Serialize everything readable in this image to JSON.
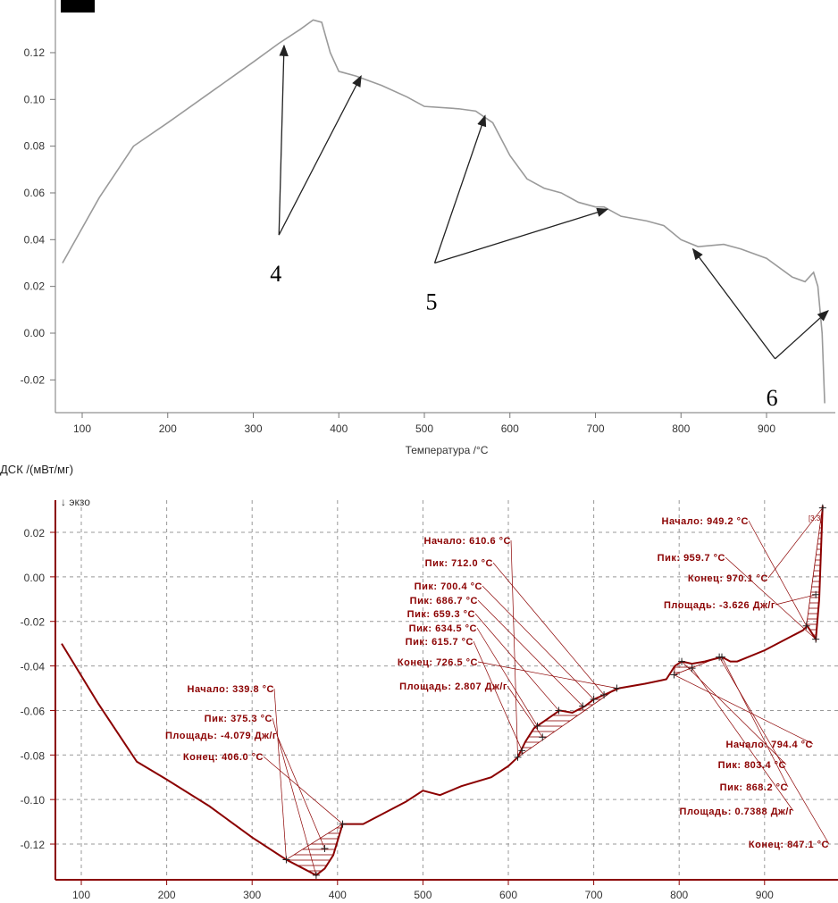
{
  "chart_data": [
    {
      "type": "line",
      "title": "",
      "xlabel": "Температура /°C",
      "ylabel": "",
      "xlim": [
        77,
        975
      ],
      "ylim": [
        -0.034,
        0.142
      ],
      "grid": false,
      "xticks": [
        100,
        200,
        300,
        400,
        500,
        600,
        700,
        800,
        900
      ],
      "yticks": [
        "0.12",
        "0.10",
        "0.08",
        "0.06",
        "0.04",
        "0.02",
        "0.00",
        "-0.02"
      ],
      "ytick_values": [
        0.12,
        0.1,
        0.08,
        0.06,
        0.04,
        0.02,
        0.0,
        -0.02
      ],
      "series": [
        {
          "name": "curve",
          "color": "#9a9a9a",
          "x": [
            77,
            120,
            160,
            200,
            250,
            300,
            330,
            355,
            370,
            380,
            390,
            400,
            420,
            450,
            480,
            500,
            540,
            560,
            580,
            600,
            620,
            640,
            660,
            680,
            700,
            710,
            730,
            760,
            780,
            800,
            820,
            850,
            870,
            900,
            930,
            945,
            955,
            960,
            965,
            968
          ],
          "y": [
            0.03,
            0.058,
            0.08,
            0.09,
            0.103,
            0.116,
            0.124,
            0.13,
            0.134,
            0.133,
            0.12,
            0.112,
            0.11,
            0.106,
            0.101,
            0.097,
            0.096,
            0.095,
            0.09,
            0.076,
            0.066,
            0.062,
            0.06,
            0.056,
            0.054,
            0.054,
            0.05,
            0.048,
            0.046,
            0.04,
            0.037,
            0.038,
            0.036,
            0.032,
            0.024,
            0.022,
            0.026,
            0.02,
            0.0,
            -0.03
          ]
        }
      ],
      "annotations": [
        {
          "label": "4",
          "origin": [
            330,
            0.042
          ],
          "targets": [
            [
              336,
              0.123
            ],
            [
              426,
              0.11
            ]
          ]
        },
        {
          "label": "5",
          "origin": [
            512,
            0.03
          ],
          "targets": [
            [
              571,
              0.093
            ],
            [
              714,
              0.053
            ]
          ]
        },
        {
          "label": "6",
          "origin": [
            910,
            -0.011
          ],
          "targets": [
            [
              814,
              0.036
            ],
            [
              972,
              0.0096
            ]
          ]
        }
      ]
    },
    {
      "type": "line",
      "title": "",
      "xlabel": "",
      "ylabel": "ДСК /(мВт/мг)",
      "exo_label": "↓ экзо",
      "xlim": [
        77,
        993
      ],
      "ylim": [
        -0.1395,
        0.0355
      ],
      "grid": true,
      "xticks": [
        100,
        200,
        300,
        400,
        500,
        600,
        700,
        800,
        900
      ],
      "yticks": [
        "0.02",
        "0.00",
        "-0.02",
        "-0.04",
        "-0.06",
        "-0.08",
        "-0.10",
        "-0.12"
      ],
      "ytick_values": [
        0.02,
        0.0,
        -0.02,
        -0.04,
        -0.06,
        -0.08,
        -0.1,
        -0.12
      ],
      "series": [
        {
          "name": "ДСК",
          "color": "#8b0000",
          "x": [
            77,
            120,
            165,
            200,
            250,
            300,
            340,
            360,
            375,
            385,
            395,
            406,
            430,
            460,
            480,
            500,
            520,
            545,
            580,
            600,
            611,
            620,
            630,
            645,
            660,
            675,
            690,
            700,
            712,
            730,
            760,
            785,
            795,
            803,
            815,
            830,
            850,
            860,
            868,
            900,
            930,
            945,
            950,
            955,
            960,
            964,
            968
          ],
          "y": [
            -0.03,
            -0.057,
            -0.083,
            -0.091,
            -0.103,
            -0.117,
            -0.127,
            -0.131,
            -0.134,
            -0.131,
            -0.125,
            -0.111,
            -0.111,
            -0.105,
            -0.101,
            -0.096,
            -0.098,
            -0.094,
            -0.09,
            -0.085,
            -0.081,
            -0.074,
            -0.068,
            -0.064,
            -0.06,
            -0.061,
            -0.058,
            -0.055,
            -0.053,
            -0.05,
            -0.048,
            -0.046,
            -0.04,
            -0.038,
            -0.039,
            -0.038,
            -0.036,
            -0.038,
            -0.038,
            -0.033,
            -0.027,
            -0.024,
            -0.022,
            -0.025,
            -0.028,
            -0.01,
            0.032
          ]
        }
      ],
      "peaks": [
        {
          "baseline": [
            [
              340,
              -0.127
            ],
            [
              406,
              -0.111
            ]
          ],
          "range": [
            340,
            406
          ]
        },
        {
          "baseline": [
            [
              611,
              -0.081
            ],
            [
              727,
              -0.05
            ]
          ],
          "range": [
            611,
            727
          ]
        },
        {
          "baseline": [
            [
              794,
              -0.044
            ],
            [
              847,
              -0.036
            ]
          ],
          "range": [
            794,
            847
          ]
        },
        {
          "baseline": [
            [
              949,
              -0.022
            ],
            [
              968,
              0.032
            ]
          ],
          "range": [
            949,
            968
          ]
        }
      ],
      "range_label": "[3.3]",
      "annotations": [
        {
          "text": "Начало: 339.8 °C",
          "target": [
            340,
            -0.127
          ]
        },
        {
          "text": "Пик: 375.3 °C",
          "target": [
            375,
            -0.134
          ]
        },
        {
          "text": "Площадь: -4.079 Дж/г",
          "target": [
            385,
            -0.122
          ]
        },
        {
          "text": "Конец: 406.0 °C",
          "target": [
            406,
            -0.111
          ]
        },
        {
          "text": "Начало: 610.6 °C",
          "target": [
            611,
            -0.081
          ]
        },
        {
          "text": "Пик: 712.0 °C",
          "target": [
            712,
            -0.053
          ]
        },
        {
          "text": "Пик: 700.4 °C",
          "target": [
            700,
            -0.055
          ]
        },
        {
          "text": "Пик: 686.7 °C",
          "target": [
            687,
            -0.058
          ]
        },
        {
          "text": "Пик: 659.3 °C",
          "target": [
            659,
            -0.06
          ]
        },
        {
          "text": "Пик: 634.5 °C",
          "target": [
            634,
            -0.067
          ]
        },
        {
          "text": "Пик: 615.7 °C",
          "target": [
            616,
            -0.078
          ]
        },
        {
          "text": "Конец: 726.5 °C",
          "target": [
            727,
            -0.05
          ]
        },
        {
          "text": "Площадь: 2.807 Дж/г",
          "target": [
            640,
            -0.072
          ]
        },
        {
          "text": "Начало: 949.2 °C",
          "target": [
            949,
            -0.022
          ]
        },
        {
          "text": "Пик: 959.7 °C",
          "target": [
            960,
            -0.028
          ]
        },
        {
          "text": "Конец: 970.1 °C",
          "target": [
            968,
            0.031
          ]
        },
        {
          "text": "Площадь: -3.626 Дж/г",
          "target": [
            960,
            -0.008
          ]
        },
        {
          "text": "Начало: 794.4 °C",
          "target": [
            794,
            -0.044
          ]
        },
        {
          "text": "Пик: 803.4 °C",
          "target": [
            803,
            -0.038
          ]
        },
        {
          "text": "Пик: 868.2 °C",
          "target": [
            850,
            -0.036
          ]
        },
        {
          "text": "Площадь: 0.7388 Дж/г",
          "target": [
            815,
            -0.041
          ]
        },
        {
          "text": "Конец: 847.1 °C",
          "target": [
            847,
            -0.036
          ]
        }
      ]
    }
  ]
}
